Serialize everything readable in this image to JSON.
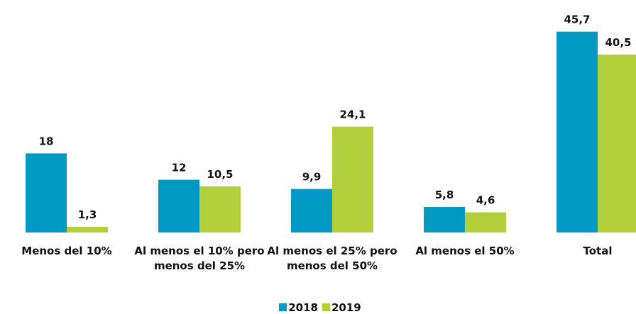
{
  "chart_data": {
    "type": "bar",
    "categories": [
      "Menos del 10%",
      "Al menos el 10% pero menos del 25%",
      "Al menos el 25% pero menos del 50%",
      "Al menos el 50%",
      "Total"
    ],
    "series": [
      {
        "name": "2018",
        "color": "#0099c4",
        "values": [
          18,
          12,
          9.9,
          5.8,
          45.7
        ],
        "value_labels": [
          "18",
          "12",
          "9,9",
          "5,8",
          "45,7"
        ]
      },
      {
        "name": "2019",
        "color": "#b3cf3b",
        "values": [
          1.3,
          10.5,
          24.1,
          4.6,
          40.5
        ],
        "value_labels": [
          "1,3",
          "10,5",
          "24,1",
          "4,6",
          "40,5"
        ]
      }
    ],
    "legend": "bottom"
  }
}
